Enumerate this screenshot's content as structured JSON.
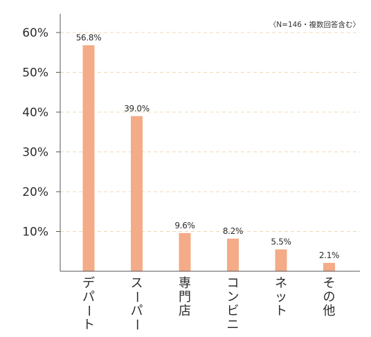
{
  "note": "〈N=146・複数回答含む〉",
  "colors": {
    "bar": "#f4ab87",
    "grid": "#f0d8b0",
    "axis": "#555555",
    "text": "#2b2b2b"
  },
  "chart_data": {
    "type": "bar",
    "categories": [
      "デパート",
      "スーパー",
      "専門店",
      "コンビニ",
      "ネット",
      "その他"
    ],
    "values": [
      56.8,
      39.0,
      9.6,
      8.2,
      5.5,
      2.1
    ],
    "value_labels": [
      "56.8%",
      "39.0%",
      "9.6%",
      "8.2%",
      "5.5%",
      "2.1%"
    ],
    "yticks": [
      "10%",
      "20%",
      "30%",
      "40%",
      "50%",
      "60%"
    ],
    "ytick_values": [
      10,
      20,
      30,
      40,
      50,
      60
    ],
    "ylim": [
      0,
      62
    ],
    "grid": "dashed",
    "annotation": "〈N=146・複数回答含む〉"
  }
}
